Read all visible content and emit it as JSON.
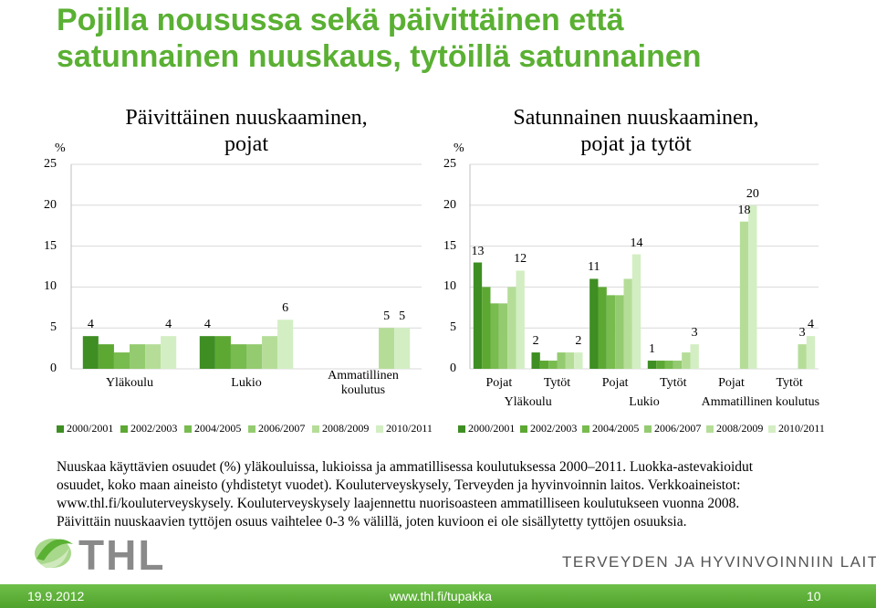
{
  "title": "Pojilla nousussa sekä päivittäinen että satunnainen nuuskaus, tytöillä satunnainen",
  "chart_data": [
    {
      "type": "bar",
      "title": "Päivittäinen nuuskaaminen, pojat",
      "y_label": "%",
      "categories": [
        "Yläkoulu",
        "Lukio",
        "Ammatillinen koulutus"
      ],
      "series": [
        {
          "name": "2000/2001",
          "color": "#3e8e23",
          "values": [
            4,
            4,
            null
          ],
          "value_labels": [
            "4",
            "4",
            null
          ]
        },
        {
          "name": "2002/2003",
          "color": "#5ca833",
          "values": [
            3,
            4,
            null
          ],
          "value_labels": [
            null,
            null,
            null
          ]
        },
        {
          "name": "2004/2005",
          "color": "#78bb4f",
          "values": [
            2,
            3,
            null
          ],
          "value_labels": [
            null,
            null,
            null
          ]
        },
        {
          "name": "2006/2007",
          "color": "#94cb70",
          "values": [
            3,
            3,
            null
          ],
          "value_labels": [
            null,
            null,
            null
          ]
        },
        {
          "name": "2008/2009",
          "color": "#b5dd98",
          "values": [
            3,
            4,
            5
          ],
          "value_labels": [
            null,
            null,
            "5"
          ]
        },
        {
          "name": "2010/2011",
          "color": "#d3eec3",
          "values": [
            4,
            6,
            5
          ],
          "value_labels": [
            "4",
            "6",
            "5"
          ]
        }
      ],
      "ylim": [
        0,
        25
      ],
      "yticks": [
        0,
        5,
        10,
        15,
        20,
        25
      ],
      "grid": true,
      "legend": "bottom"
    },
    {
      "type": "bar",
      "title": "Satunnainen nuuskaaminen, pojat ja tytöt",
      "y_label": "%",
      "categories": [
        "Pojat",
        "Tytöt",
        "Pojat",
        "Tytöt",
        "Pojat",
        "Tytöt"
      ],
      "groups": [
        "Yläkoulu",
        "Lukio",
        "Ammatillinen koulutus"
      ],
      "series": [
        {
          "name": "2000/2001",
          "color": "#3e8e23",
          "values": [
            13,
            2,
            11,
            1,
            null,
            null
          ],
          "value_labels": [
            "13",
            "2",
            "11",
            "1",
            null,
            null
          ]
        },
        {
          "name": "2002/2003",
          "color": "#5ca833",
          "values": [
            10,
            1,
            10,
            1,
            null,
            null
          ],
          "value_labels": [
            null,
            null,
            null,
            null,
            null,
            null
          ]
        },
        {
          "name": "2004/2005",
          "color": "#78bb4f",
          "values": [
            8,
            1,
            9,
            1,
            null,
            null
          ],
          "value_labels": [
            null,
            null,
            null,
            null,
            null,
            null
          ]
        },
        {
          "name": "2006/2007",
          "color": "#94cb70",
          "values": [
            8,
            2,
            9,
            1,
            null,
            null
          ],
          "value_labels": [
            null,
            null,
            null,
            null,
            null,
            null
          ]
        },
        {
          "name": "2008/2009",
          "color": "#b5dd98",
          "values": [
            10,
            2,
            11,
            2,
            18,
            3
          ],
          "value_labels": [
            null,
            null,
            null,
            null,
            "18",
            "3"
          ]
        },
        {
          "name": "2010/2011",
          "color": "#d3eec3",
          "values": [
            12,
            2,
            14,
            3,
            20,
            4
          ],
          "value_labels": [
            "12",
            "2",
            "14",
            "3",
            "20",
            "4"
          ]
        }
      ],
      "ylim": [
        0,
        25
      ],
      "yticks": [
        0,
        5,
        10,
        15,
        20,
        25
      ],
      "grid": true,
      "legend": "bottom"
    }
  ],
  "caption_lines": [
    "Nuuskaa käyttävien osuudet (%) yläkouluissa, lukioissa ja ammatillisessa koulutuksessa 2000–2011. Luokka-astevakioidut",
    "osuudet, koko maan aineisto (yhdistetyt vuodet). Kouluterveyskysely, Terveyden ja hyvinvoinnin laitos. Verkkoaineistot:",
    "www.thl.fi/kouluterveyskysely. Kouluterveyskysely laajennettu nuorisoasteen ammatilliseen koulutukseen vuonna 2008.",
    "Päivittäin nuuskaavien tyttöjen osuus vaihtelee 0-3 % välillä, joten kuvioon ei ole sisällytetty tyttöjen osuuksia."
  ],
  "logo": {
    "text": "THL",
    "subtitle": "TERVEYDEN JA HYVINVOINNIIN LAITOS"
  },
  "footer": {
    "date": "19.9.2012",
    "url": "www.thl.fi/tupakka",
    "page": "10"
  }
}
